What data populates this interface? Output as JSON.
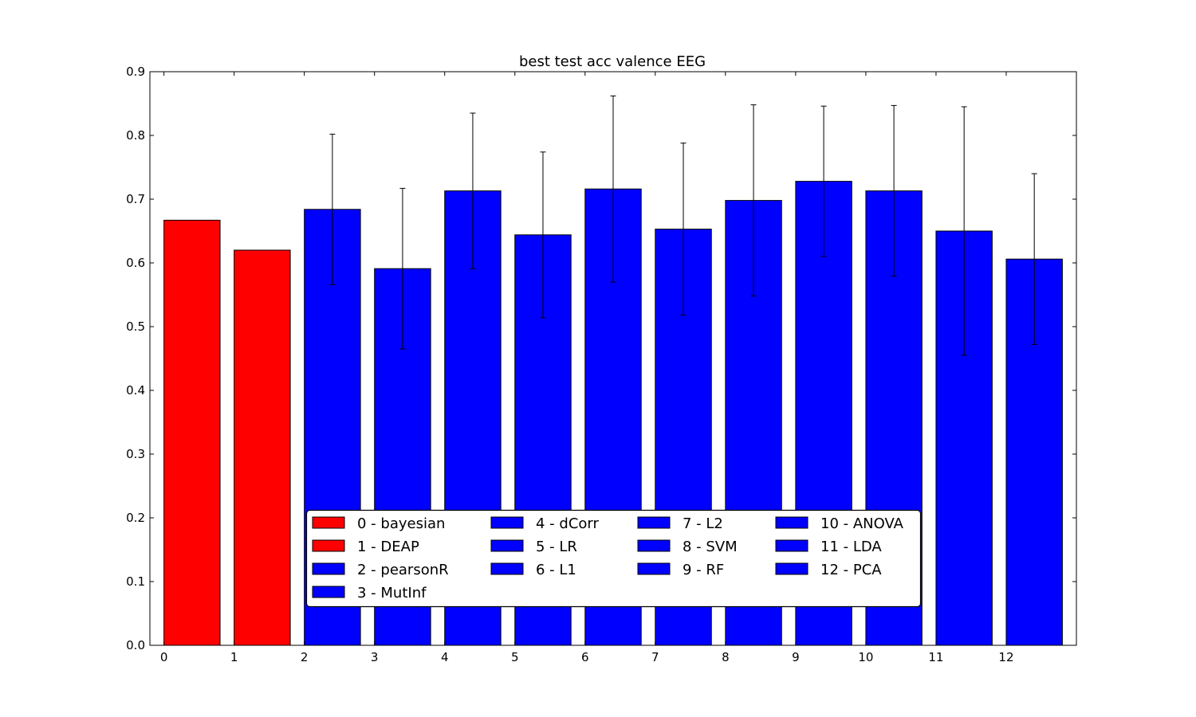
{
  "chart_data": {
    "type": "bar",
    "title": "best test acc valence EEG",
    "xlabel": "",
    "ylabel": "",
    "ylim": [
      0,
      0.9
    ],
    "xlim": [
      -0.2,
      13.0
    ],
    "bar_width": 0.8,
    "yticks": [
      "0.0",
      "0.1",
      "0.2",
      "0.3",
      "0.4",
      "0.5",
      "0.6",
      "0.7",
      "0.8",
      "0.9"
    ],
    "xticks": [
      "0",
      "1",
      "2",
      "3",
      "4",
      "5",
      "6",
      "7",
      "8",
      "9",
      "10",
      "11",
      "12"
    ],
    "grid": false,
    "legend_position": "lower-center",
    "legend_columns": 4,
    "categories": [
      "0 - bayesian",
      "1 - DEAP",
      "2 - pearsonR",
      "3 - MutInf",
      "4 - dCorr",
      "5 - LR",
      "6 - L1",
      "7 - L2",
      "8 - SVM",
      "9 - RF",
      "10 - ANOVA",
      "11 - LDA",
      "12 - PCA"
    ],
    "values": [
      0.667,
      0.62,
      0.684,
      0.591,
      0.713,
      0.644,
      0.716,
      0.653,
      0.698,
      0.728,
      0.713,
      0.65,
      0.606
    ],
    "errors": [
      null,
      null,
      0.118,
      0.126,
      0.122,
      0.13,
      0.146,
      0.135,
      0.15,
      0.118,
      0.134,
      0.195,
      0.134
    ],
    "colors": [
      "#ff0000",
      "#ff0000",
      "#0000ff",
      "#0000ff",
      "#0000ff",
      "#0000ff",
      "#0000ff",
      "#0000ff",
      "#0000ff",
      "#0000ff",
      "#0000ff",
      "#0000ff",
      "#0000ff"
    ]
  }
}
